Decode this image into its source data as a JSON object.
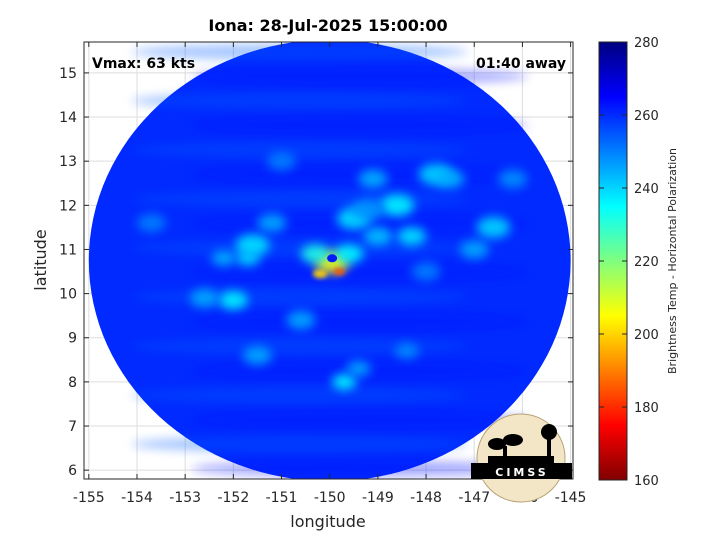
{
  "chart_data": {
    "type": "heatmap",
    "title": "Iona: 28-Jul-2025 15:00:00",
    "xlabel": "longitude",
    "ylabel": "latitude",
    "xlim": [
      -155.1,
      -144.95
    ],
    "ylim": [
      5.8,
      15.7
    ],
    "xticks": [
      -155,
      -154,
      -153,
      -152,
      -151,
      -150,
      -149,
      -148,
      -147,
      -146,
      -145
    ],
    "yticks": [
      6,
      7,
      8,
      9,
      10,
      11,
      12,
      13,
      14,
      15
    ],
    "grid": true,
    "colorbar": {
      "label": "Brightness Temp - Horizontal Polarization",
      "range": [
        160,
        280
      ],
      "ticks": [
        160,
        180,
        200,
        220,
        240,
        260,
        280
      ],
      "colormap": "jet"
    },
    "annotations": {
      "left": "Vmax: 63 kts",
      "right": "01:40 away"
    },
    "swath": {
      "center": [
        -150.0,
        10.75
      ],
      "radius_deg": 5.0
    },
    "storm_center": [
      -149.95,
      10.6
    ],
    "features": [
      {
        "lon": -149.95,
        "lat": 10.7,
        "temp": 205,
        "size": 0.35
      },
      {
        "lon": -149.8,
        "lat": 10.5,
        "temp": 185,
        "size": 0.12
      },
      {
        "lon": -150.2,
        "lat": 10.45,
        "temp": 200,
        "size": 0.15
      },
      {
        "lon": -150.3,
        "lat": 10.9,
        "temp": 232,
        "size": 0.3
      },
      {
        "lon": -149.6,
        "lat": 10.9,
        "temp": 235,
        "size": 0.3
      },
      {
        "lon": -149.5,
        "lat": 11.7,
        "temp": 238,
        "size": 0.35
      },
      {
        "lon": -149.0,
        "lat": 11.3,
        "temp": 242,
        "size": 0.3
      },
      {
        "lon": -148.6,
        "lat": 12.0,
        "temp": 236,
        "size": 0.35
      },
      {
        "lon": -148.3,
        "lat": 11.3,
        "temp": 238,
        "size": 0.3
      },
      {
        "lon": -147.8,
        "lat": 12.7,
        "temp": 240,
        "size": 0.35
      },
      {
        "lon": -147.5,
        "lat": 12.6,
        "temp": 244,
        "size": 0.3
      },
      {
        "lon": -149.1,
        "lat": 12.6,
        "temp": 244,
        "size": 0.3
      },
      {
        "lon": -146.6,
        "lat": 11.5,
        "temp": 240,
        "size": 0.35
      },
      {
        "lon": -147.0,
        "lat": 11.0,
        "temp": 245,
        "size": 0.3
      },
      {
        "lon": -151.6,
        "lat": 11.1,
        "temp": 238,
        "size": 0.35
      },
      {
        "lon": -151.7,
        "lat": 10.8,
        "temp": 240,
        "size": 0.25
      },
      {
        "lon": -152.2,
        "lat": 10.8,
        "temp": 244,
        "size": 0.25
      },
      {
        "lon": -151.2,
        "lat": 11.6,
        "temp": 245,
        "size": 0.3
      },
      {
        "lon": -152.0,
        "lat": 9.85,
        "temp": 236,
        "size": 0.3
      },
      {
        "lon": -152.6,
        "lat": 9.9,
        "temp": 245,
        "size": 0.3
      },
      {
        "lon": -150.6,
        "lat": 9.4,
        "temp": 245,
        "size": 0.3
      },
      {
        "lon": -151.5,
        "lat": 8.6,
        "temp": 245,
        "size": 0.3
      },
      {
        "lon": -149.7,
        "lat": 8.0,
        "temp": 235,
        "size": 0.25
      },
      {
        "lon": -149.4,
        "lat": 8.3,
        "temp": 245,
        "size": 0.25
      },
      {
        "lon": -148.4,
        "lat": 8.7,
        "temp": 248,
        "size": 0.25
      },
      {
        "lon": -153.7,
        "lat": 11.6,
        "temp": 250,
        "size": 0.3
      },
      {
        "lon": -151.0,
        "lat": 13.0,
        "temp": 250,
        "size": 0.3
      },
      {
        "lon": -146.2,
        "lat": 12.6,
        "temp": 248,
        "size": 0.3
      },
      {
        "lon": -149.2,
        "lat": 11.9,
        "temp": 247,
        "size": 0.35
      },
      {
        "lon": -148.0,
        "lat": 10.5,
        "temp": 250,
        "size": 0.3
      }
    ]
  },
  "logo": {
    "text": "CIMSS"
  }
}
